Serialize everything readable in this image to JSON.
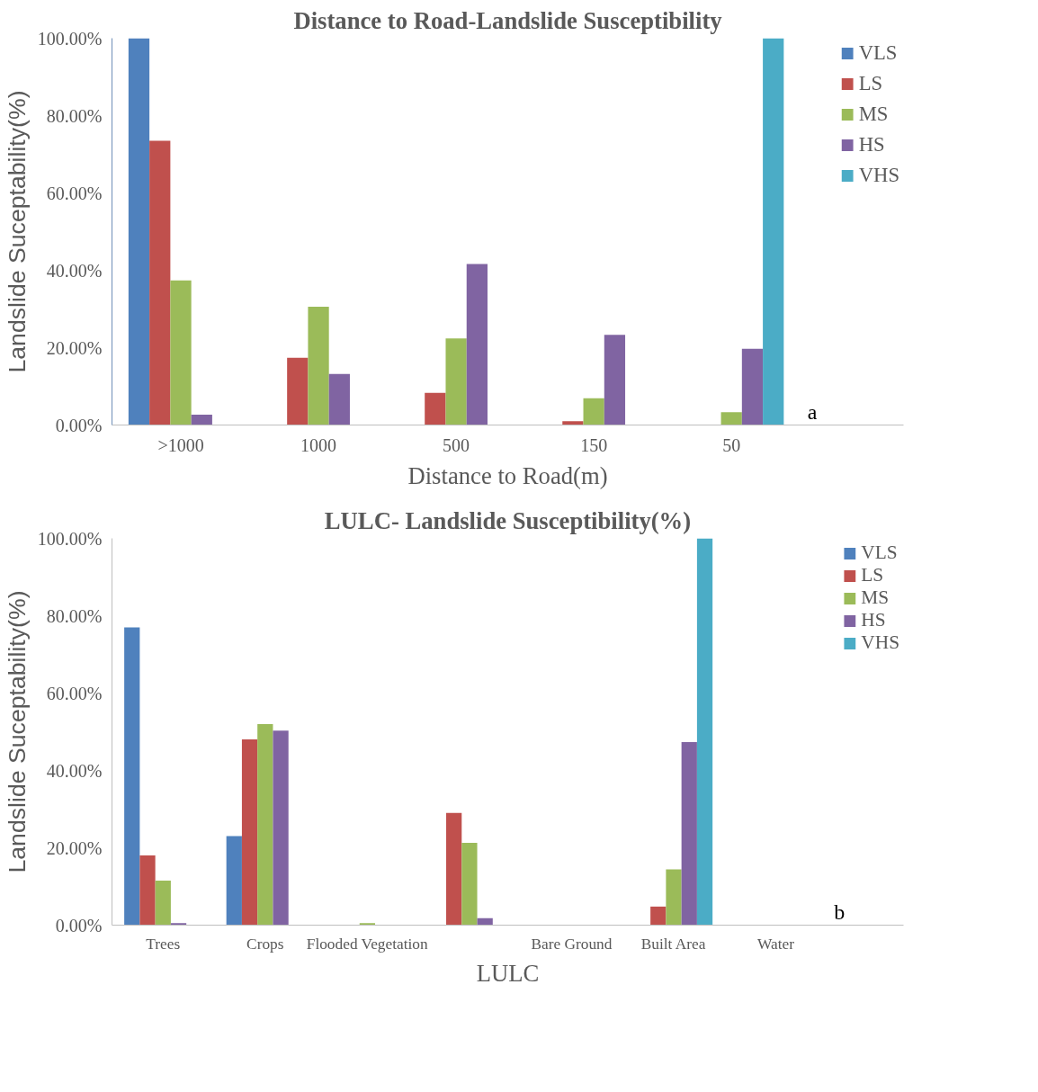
{
  "chart_data": [
    {
      "type": "bar",
      "title": "Distance to Road-Landslide Susceptibility",
      "xlabel": "Distance to Road(m)",
      "ylabel": "Landslide Suceptability(%)",
      "categories": [
        ">1000",
        "1000",
        "500",
        "150",
        "50"
      ],
      "series": [
        {
          "name": "VLS",
          "color": "#4f81bd",
          "values": [
            100,
            0,
            0,
            0,
            0
          ]
        },
        {
          "name": "LS",
          "color": "#c0504d",
          "values": [
            73.5,
            17.4,
            8.3,
            1.0,
            0
          ]
        },
        {
          "name": "MS",
          "color": "#9bbb59",
          "values": [
            37.4,
            30.6,
            22.4,
            6.9,
            3.3
          ]
        },
        {
          "name": "HS",
          "color": "#8064a2",
          "values": [
            2.7,
            13.2,
            41.6,
            23.3,
            19.7
          ]
        },
        {
          "name": "VHS",
          "color": "#4bacc6",
          "values": [
            0,
            0,
            0,
            0,
            100
          ]
        }
      ],
      "ylim": [
        0,
        100
      ],
      "yticks": [
        {
          "value": 0,
          "label": "0.00%"
        },
        {
          "value": 20,
          "label": "20.00%"
        },
        {
          "value": 40,
          "label": "40.00%"
        },
        {
          "value": 60,
          "label": "60.00%"
        },
        {
          "value": 80,
          "label": "80.00%"
        },
        {
          "value": 100,
          "label": "100.00%"
        }
      ],
      "grid": false,
      "legend": "right",
      "annotations": [
        "a"
      ]
    },
    {
      "type": "bar",
      "title": "LULC- Landslide Susceptibility(%)",
      "xlabel": "LULC",
      "ylabel": "Landslide Suceptability(%)",
      "categories": [
        "Trees",
        "Crops",
        "Flooded Vegetation",
        null,
        "Bare Ground",
        "Built Area",
        "Water"
      ],
      "series": [
        {
          "name": "VLS",
          "color": "#4f81bd",
          "values": [
            77,
            23,
            0,
            0,
            0,
            0,
            0
          ]
        },
        {
          "name": "LS",
          "color": "#c0504d",
          "values": [
            18,
            48,
            0,
            29,
            0,
            4.8,
            0
          ]
        },
        {
          "name": "MS",
          "color": "#9bbb59",
          "values": [
            11.5,
            52,
            0.5,
            21.3,
            0,
            14.4,
            0
          ]
        },
        {
          "name": "HS",
          "color": "#8064a2",
          "values": [
            0.5,
            50.3,
            0,
            1.8,
            0,
            47.3,
            0
          ]
        },
        {
          "name": "VHS",
          "color": "#4bacc6",
          "values": [
            0,
            0,
            0,
            0,
            0,
            100,
            0
          ]
        }
      ],
      "ylim": [
        0,
        100
      ],
      "yticks": [
        {
          "value": 0,
          "label": "0.00%"
        },
        {
          "value": 20,
          "label": "20.00%"
        },
        {
          "value": 40,
          "label": "40.00%"
        },
        {
          "value": 60,
          "label": "60.00%"
        },
        {
          "value": 80,
          "label": "80.00%"
        },
        {
          "value": 100,
          "label": "100.00%"
        }
      ],
      "grid": false,
      "legend": "right",
      "annotations": [
        "b"
      ]
    }
  ]
}
